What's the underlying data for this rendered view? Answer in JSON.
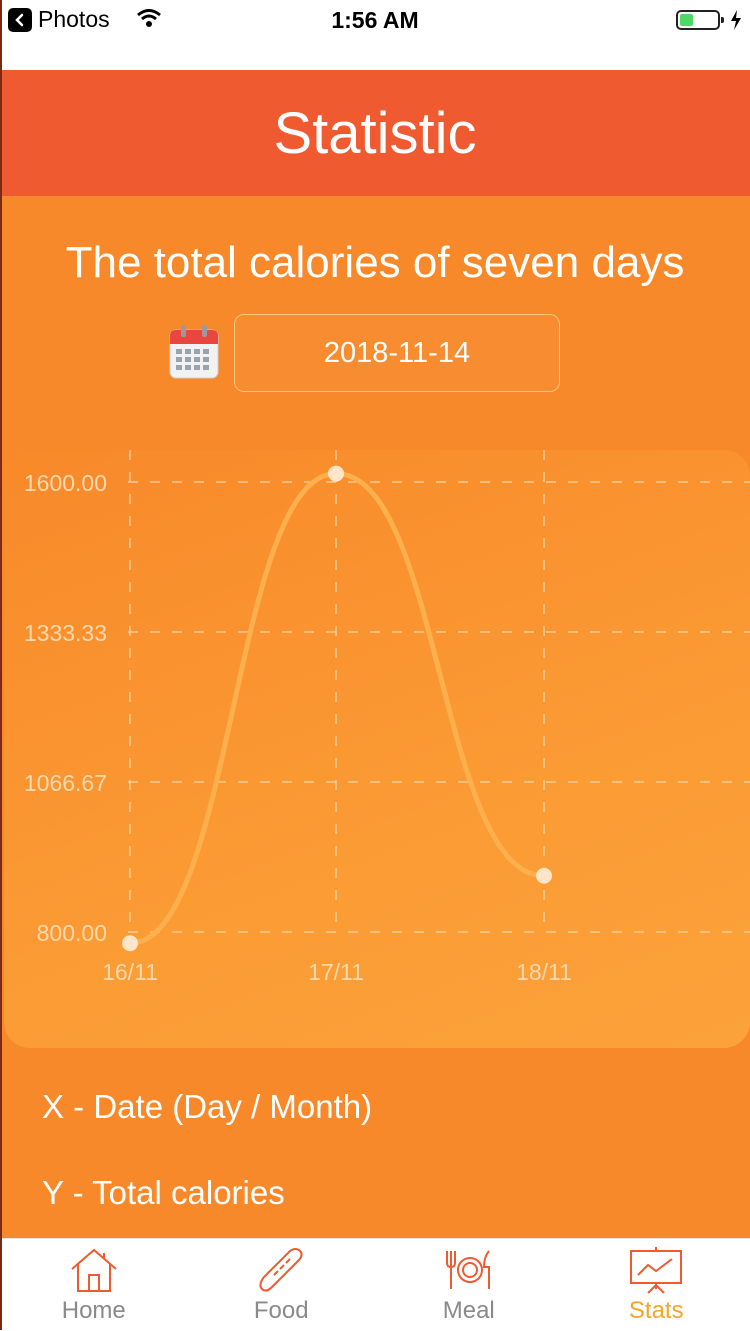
{
  "status_bar": {
    "back_app": "Photos",
    "time": "1:56 AM"
  },
  "header": {
    "title": "Statistic"
  },
  "section": {
    "subtitle": "The total calories of seven days"
  },
  "date_picker": {
    "value": "2018-11-14",
    "icon": "calendar-icon"
  },
  "chart_data": {
    "type": "line",
    "categories": [
      "16/11",
      "17/11",
      "18/11"
    ],
    "values": [
      780,
      1615,
      900
    ],
    "y_ticks": [
      "800.00",
      "1066.67",
      "1333.33",
      "1600.00"
    ],
    "ylim": [
      800,
      1600
    ],
    "grid": true,
    "smooth": true,
    "colors": {
      "line": "#ffb04c",
      "point": "#ffe8d0",
      "grid": "#ffd9ad",
      "text": "#ffd9ad"
    }
  },
  "legend": {
    "x": "X - Date (Day / Month)",
    "y": "Y - Total calories"
  },
  "tabs": [
    {
      "label": "Home",
      "icon": "home-icon",
      "active": false
    },
    {
      "label": "Food",
      "icon": "baguette-icon",
      "active": false
    },
    {
      "label": "Meal",
      "icon": "cutlery-icon",
      "active": false
    },
    {
      "label": "Stats",
      "icon": "chart-board-icon",
      "active": true
    }
  ],
  "colors": {
    "header": "#ef5a30",
    "body": "#f8892a",
    "active_tab": "#f5a623",
    "tab_icon": "#ef5a30"
  }
}
